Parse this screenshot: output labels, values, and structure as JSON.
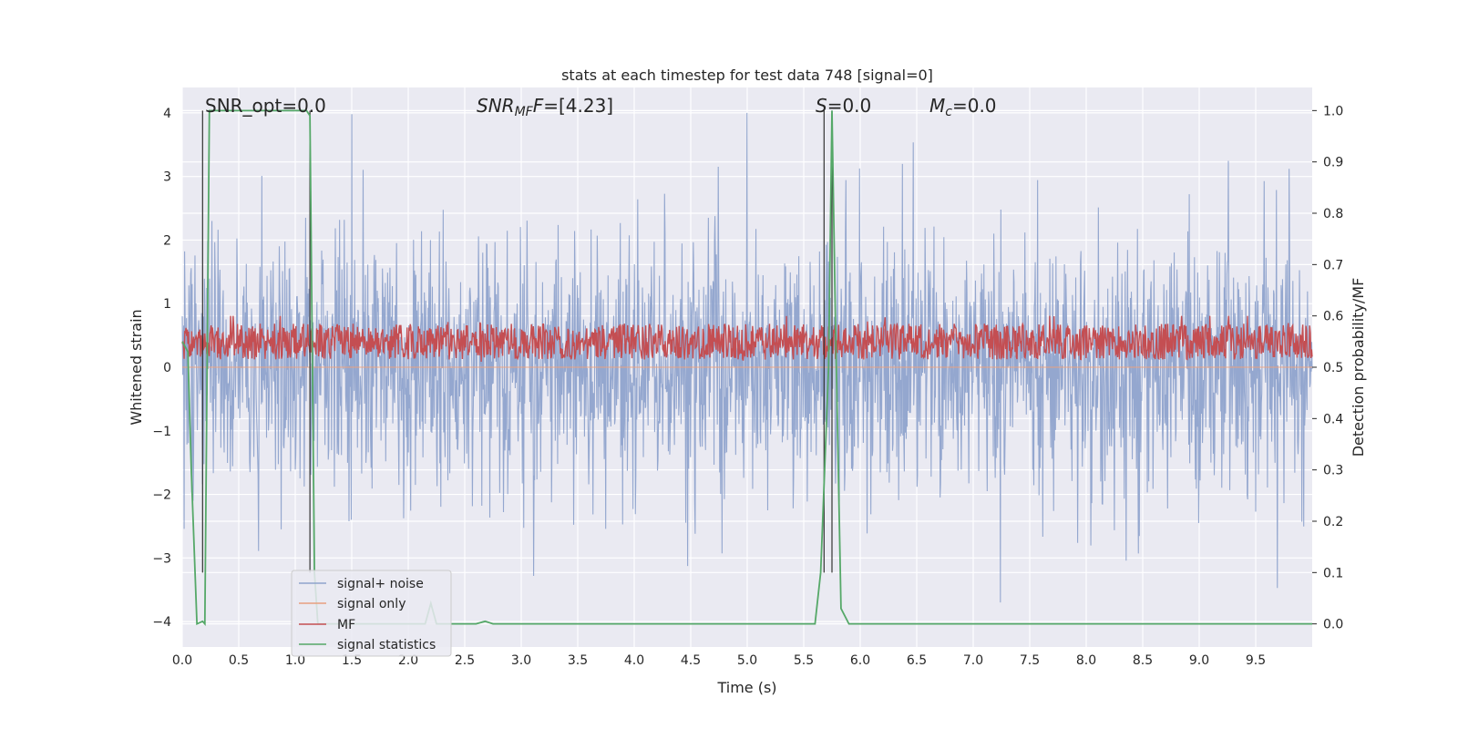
{
  "chart_data": {
    "type": "line",
    "title": "stats at each timestep for test data 748 [signal=0]",
    "xlabel": "Time (s)",
    "ylabel": "Whitened strain",
    "y2label": "Detection probability/MF",
    "xlim": [
      0.0,
      10.0
    ],
    "ylim": [
      -4.4,
      4.4
    ],
    "y2lim": [
      -0.045,
      1.045
    ],
    "x_ticks": [
      "0.0",
      "0.5",
      "1.0",
      "1.5",
      "2.0",
      "2.5",
      "3.0",
      "3.5",
      "4.0",
      "4.5",
      "5.0",
      "5.5",
      "6.0",
      "6.5",
      "7.0",
      "7.5",
      "8.0",
      "8.5",
      "9.0",
      "9.5"
    ],
    "y_ticks": [
      "4",
      "3",
      "2",
      "1",
      "0",
      "−1",
      "−2",
      "−3",
      "−4"
    ],
    "y2_ticks": [
      "1.0",
      "0.9",
      "0.8",
      "0.7",
      "0.6",
      "0.5",
      "0.4",
      "0.3",
      "0.2",
      "0.1",
      "0.0"
    ],
    "grid": true,
    "legend_position": "lower-left",
    "annotations": {
      "snr_opt": "SNR_opt=0.0",
      "snr_mf_sym": "SNR",
      "snr_mf_sub": "MF",
      "snr_mf_val": "=[4.23]",
      "s_sym": "S",
      "s_val": "=0.0",
      "mc_sym": "M",
      "mc_sub": "c",
      "mc_val": "=0.0"
    },
    "vertical_markers_s": [
      0.18,
      1.13,
      5.68,
      5.75
    ],
    "series": [
      {
        "name": "signal+ noise",
        "color": "#8fa3cc",
        "axis": "left",
        "amplitude_range": [
          -3.7,
          4.0
        ],
        "typical_std": 1.0
      },
      {
        "name": "signal only",
        "color": "#e8a07f",
        "axis": "left",
        "values": "flat at 0"
      },
      {
        "name": "MF",
        "color": "#c44e52",
        "axis": "right",
        "range": [
          0.5,
          0.6
        ],
        "mean": 0.55
      },
      {
        "name": "signal statistics",
        "color": "#55a868",
        "axis": "right",
        "x": [
          0.0,
          0.05,
          0.08,
          0.13,
          0.18,
          0.2,
          0.24,
          0.3,
          1.1,
          1.13,
          1.17,
          1.2,
          2.15,
          2.2,
          2.25,
          2.6,
          2.68,
          2.75,
          5.6,
          5.65,
          5.72,
          5.75,
          5.78,
          5.83,
          5.9,
          10.0
        ],
        "y": [
          0.55,
          0.53,
          0.3,
          0.0,
          0.005,
          0.0,
          1.0,
          1.0,
          1.0,
          0.99,
          0.1,
          0.0,
          0.0,
          0.04,
          0.0,
          0.0,
          0.005,
          0.0,
          0.0,
          0.1,
          0.5,
          1.0,
          0.6,
          0.03,
          0.0,
          0.0
        ]
      }
    ]
  }
}
